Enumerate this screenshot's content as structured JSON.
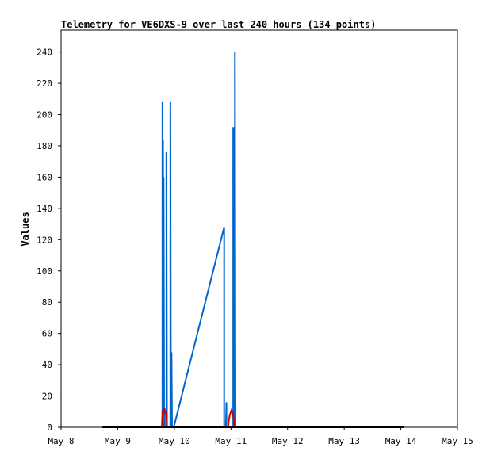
{
  "chart_data": {
    "type": "line",
    "title": "Telemetry for VE6DXS-9 over last 240 hours (134 points)",
    "xlabel": "",
    "ylabel": "Values",
    "x_tick_labels": [
      "May 8",
      "May 9",
      "May 10",
      "May 11",
      "May 12",
      "May 13",
      "May 14",
      "May 15"
    ],
    "xlim_days": [
      8,
      15
    ],
    "ylim": [
      0,
      254
    ],
    "y_ticks": [
      0,
      20,
      40,
      60,
      80,
      100,
      120,
      140,
      160,
      180,
      200,
      220,
      240
    ],
    "grid": false,
    "legend": "none",
    "series": [
      {
        "color": "#0066cc",
        "x_days": [
          8.73,
          9.79,
          9.79,
          9.8,
          9.8,
          9.81,
          9.81,
          9.82,
          9.82,
          9.83,
          9.83,
          9.84,
          9.84,
          9.85,
          9.85,
          9.86,
          9.86,
          9.87,
          9.87,
          9.93,
          9.93,
          9.94,
          9.94,
          9.95,
          9.95,
          9.96,
          9.96,
          9.97,
          9.97,
          9.98,
          9.98,
          9.99,
          10.88,
          10.88,
          10.89,
          10.89,
          10.9,
          10.9,
          10.91,
          10.91,
          10.92,
          10.92,
          10.93,
          10.93,
          10.94,
          10.94,
          10.95,
          10.95,
          10.96,
          10.96,
          10.97,
          10.97,
          10.98,
          10.98,
          10.99,
          10.99,
          11.0,
          11.0,
          11.01,
          11.01,
          11.02,
          11.02,
          11.03,
          11.03,
          11.04,
          11.04,
          11.05,
          11.05,
          11.06,
          11.06,
          11.07,
          11.07,
          11.08,
          11.08,
          11.09,
          11.09,
          11.1,
          11.1,
          14.05
        ],
        "y": [
          0,
          0,
          208,
          0,
          184,
          0,
          160,
          0,
          10,
          12,
          0,
          0,
          0,
          0,
          0,
          0,
          176,
          0,
          0,
          0,
          208,
          0,
          40,
          0,
          48,
          0,
          0,
          0,
          0,
          0,
          0,
          0,
          128,
          0,
          0,
          0,
          0,
          0,
          0,
          0,
          16,
          0,
          0,
          0,
          0,
          0,
          0,
          0,
          0,
          0,
          0,
          0,
          0,
          0,
          0,
          0,
          0,
          0,
          0,
          0,
          0,
          0,
          0,
          0,
          0,
          192,
          0,
          192,
          0,
          160,
          0,
          240,
          0,
          0,
          0,
          0,
          0,
          0,
          0
        ]
      },
      {
        "color": "#cc0000",
        "x_days": [
          9.78,
          9.79,
          9.8,
          9.81,
          9.82,
          9.83,
          9.84,
          9.85,
          9.86,
          9.87,
          10.95,
          10.96,
          10.97,
          10.98,
          10.99,
          11.0,
          11.01,
          11.02,
          11.03,
          11.04,
          11.05,
          11.06
        ],
        "y": [
          0,
          10,
          11,
          9,
          12,
          11,
          10,
          9,
          8,
          0,
          0,
          4,
          6,
          8,
          9,
          10,
          11,
          10,
          9,
          7,
          5,
          0
        ]
      },
      {
        "color": "#000000",
        "x_days": [
          8.73,
          14.05
        ],
        "y": [
          0,
          0
        ]
      }
    ]
  }
}
